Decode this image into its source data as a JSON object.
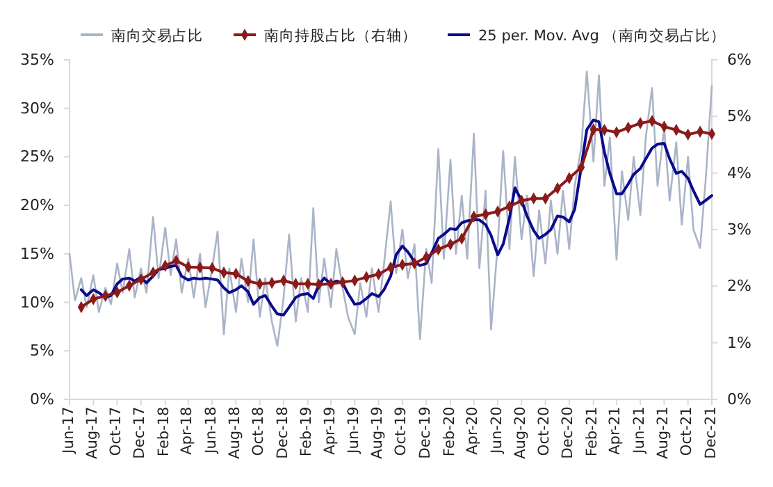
{
  "chart_data": {
    "type": "line",
    "legend": "top",
    "x": [
      "2017-06-01",
      "2017-06-15",
      "2017-07-01",
      "2017-07-15",
      "2017-08-01",
      "2017-08-15",
      "2017-09-01",
      "2017-09-15",
      "2017-10-01",
      "2017-10-15",
      "2017-11-01",
      "2017-11-15",
      "2017-12-01",
      "2017-12-15",
      "2018-01-01",
      "2018-01-15",
      "2018-02-01",
      "2018-02-15",
      "2018-03-01",
      "2018-03-15",
      "2018-04-01",
      "2018-04-15",
      "2018-05-01",
      "2018-05-15",
      "2018-06-01",
      "2018-06-15",
      "2018-07-01",
      "2018-07-15",
      "2018-08-01",
      "2018-08-15",
      "2018-09-01",
      "2018-09-15",
      "2018-10-01",
      "2018-10-15",
      "2018-11-01",
      "2018-11-15",
      "2018-12-01",
      "2018-12-15",
      "2019-01-01",
      "2019-01-15",
      "2019-02-01",
      "2019-02-15",
      "2019-03-01",
      "2019-03-15",
      "2019-04-01",
      "2019-04-15",
      "2019-05-01",
      "2019-05-15",
      "2019-06-01",
      "2019-06-15",
      "2019-07-01",
      "2019-07-15",
      "2019-08-01",
      "2019-08-15",
      "2019-09-01",
      "2019-09-15",
      "2019-10-01",
      "2019-10-15",
      "2019-11-01",
      "2019-11-15",
      "2019-12-01",
      "2019-12-15",
      "2020-01-01",
      "2020-01-15",
      "2020-02-01",
      "2020-02-15",
      "2020-03-01",
      "2020-03-15",
      "2020-04-01",
      "2020-04-15",
      "2020-05-01",
      "2020-05-15",
      "2020-06-01",
      "2020-06-15",
      "2020-07-01",
      "2020-07-15",
      "2020-08-01",
      "2020-08-15",
      "2020-09-01",
      "2020-09-15",
      "2020-10-01",
      "2020-10-15",
      "2020-11-01",
      "2020-11-15",
      "2020-12-01",
      "2020-12-15",
      "2021-01-01",
      "2021-01-15",
      "2021-02-01",
      "2021-02-15",
      "2021-03-01",
      "2021-03-15",
      "2021-04-01",
      "2021-04-15",
      "2021-05-01",
      "2021-05-15",
      "2021-06-01",
      "2021-06-15",
      "2021-07-01",
      "2021-07-15",
      "2021-08-01",
      "2021-08-15",
      "2021-09-01",
      "2021-09-15",
      "2021-10-01",
      "2021-10-15",
      "2021-11-01",
      "2021-11-15",
      "2021-12-01"
    ],
    "xlim": [
      "2017-06-01",
      "2021-12-01"
    ],
    "xticks": [
      {
        "value": "2017-06-01",
        "label": "Jun-17"
      },
      {
        "value": "2017-08-01",
        "label": "Aug-17"
      },
      {
        "value": "2017-10-01",
        "label": "Oct-17"
      },
      {
        "value": "2017-12-01",
        "label": "Dec-17"
      },
      {
        "value": "2018-02-01",
        "label": "Feb-18"
      },
      {
        "value": "2018-04-01",
        "label": "Apr-18"
      },
      {
        "value": "2018-06-01",
        "label": "Jun-18"
      },
      {
        "value": "2018-08-01",
        "label": "Aug-18"
      },
      {
        "value": "2018-10-01",
        "label": "Oct-18"
      },
      {
        "value": "2018-12-01",
        "label": "Dec-18"
      },
      {
        "value": "2019-02-01",
        "label": "Feb-19"
      },
      {
        "value": "2019-04-01",
        "label": "Apr-19"
      },
      {
        "value": "2019-06-01",
        "label": "Jun-19"
      },
      {
        "value": "2019-08-01",
        "label": "Aug-19"
      },
      {
        "value": "2019-10-01",
        "label": "Oct-19"
      },
      {
        "value": "2019-12-01",
        "label": "Dec-19"
      },
      {
        "value": "2020-02-01",
        "label": "Feb-20"
      },
      {
        "value": "2020-04-01",
        "label": "Apr-20"
      },
      {
        "value": "2020-06-01",
        "label": "Jun-20"
      },
      {
        "value": "2020-08-01",
        "label": "Aug-20"
      },
      {
        "value": "2020-10-01",
        "label": "Oct-20"
      },
      {
        "value": "2020-12-01",
        "label": "Dec-20"
      },
      {
        "value": "2021-02-01",
        "label": "Feb-21"
      },
      {
        "value": "2021-04-01",
        "label": "Apr-21"
      },
      {
        "value": "2021-06-01",
        "label": "Jun-21"
      },
      {
        "value": "2021-08-01",
        "label": "Aug-21"
      },
      {
        "value": "2021-10-01",
        "label": "Oct-21"
      },
      {
        "value": "2021-12-01",
        "label": "Dec-21"
      }
    ],
    "ylim": [
      0,
      35
    ],
    "yticks": [
      {
        "value": 0,
        "label": "0%"
      },
      {
        "value": 5,
        "label": "5%"
      },
      {
        "value": 10,
        "label": "10%"
      },
      {
        "value": 15,
        "label": "15%"
      },
      {
        "value": 20,
        "label": "20%"
      },
      {
        "value": 25,
        "label": "25%"
      },
      {
        "value": 30,
        "label": "30%"
      },
      {
        "value": 35,
        "label": "35%"
      }
    ],
    "y2lim": [
      0,
      6
    ],
    "y2ticks": [
      {
        "value": 0,
        "label": "0%"
      },
      {
        "value": 1,
        "label": "1%"
      },
      {
        "value": 2,
        "label": "2%"
      },
      {
        "value": 3,
        "label": "3%"
      },
      {
        "value": 4,
        "label": "4%"
      },
      {
        "value": 5,
        "label": "5%"
      },
      {
        "value": 6,
        "label": "6%"
      }
    ],
    "series": [
      {
        "name": "南向交易占比",
        "color": "#aab4c8",
        "marker": "none",
        "values": [
          15.0,
          10.2,
          12.5,
          9.5,
          12.8,
          9.0,
          11.5,
          9.8,
          14.0,
          11.0,
          15.5,
          10.5,
          13.5,
          11.0,
          18.8,
          12.5,
          17.7,
          12.8,
          16.5,
          11.0,
          14.5,
          10.5,
          15.0,
          9.5,
          13.5,
          17.3,
          6.7,
          13.5,
          9.0,
          14.5,
          10.0,
          16.5,
          8.5,
          12.5,
          8.0,
          5.5,
          10.5,
          17.0,
          8.0,
          12.5,
          9.0,
          19.7,
          10.0,
          14.5,
          9.5,
          15.5,
          11.5,
          8.5,
          6.7,
          12.0,
          8.5,
          13.5,
          9.0,
          14.0,
          20.4,
          13.0,
          17.5,
          12.5,
          16.0,
          6.2,
          15.5,
          12.0,
          25.8,
          14.5,
          24.7,
          15.0,
          21.0,
          14.5,
          27.4,
          13.5,
          21.5,
          7.2,
          16.0,
          25.6,
          15.5,
          25.0,
          16.5,
          21.0,
          12.7,
          19.5,
          14.0,
          20.5,
          15.0,
          21.5,
          15.5,
          22.0,
          26.0,
          33.8,
          24.5,
          33.4,
          22.0,
          27.0,
          14.4,
          23.5,
          18.5,
          25.0,
          19.0,
          27.0,
          32.1,
          22.0,
          28.0,
          20.5,
          26.5,
          18.0,
          25.0,
          17.5,
          15.6,
          22.5,
          32.3
        ]
      },
      {
        "name": "南向持股占比（右轴）",
        "axis": "y2",
        "color": "#8b1a1a",
        "marker": "diamond",
        "x": [
          "2017-07",
          "2017-08",
          "2017-09",
          "2017-10",
          "2017-11",
          "2017-12",
          "2018-01",
          "2018-02",
          "2018-03",
          "2018-04",
          "2018-05",
          "2018-06",
          "2018-07",
          "2018-08",
          "2018-09",
          "2018-10",
          "2018-11",
          "2018-12",
          "2019-01",
          "2019-02",
          "2019-03",
          "2019-04",
          "2019-05",
          "2019-06",
          "2019-07",
          "2019-08",
          "2019-09",
          "2019-10",
          "2019-11",
          "2019-12",
          "2020-01",
          "2020-02",
          "2020-03",
          "2020-04",
          "2020-05",
          "2020-06",
          "2020-07",
          "2020-08",
          "2020-09",
          "2020-10",
          "2020-11",
          "2020-12",
          "2021-01",
          "2021-02",
          "2021-03",
          "2021-04",
          "2021-05",
          "2021-06",
          "2021-07",
          "2021-08",
          "2021-09",
          "2021-10",
          "2021-11",
          "2021-12"
        ],
        "values": [
          1.63,
          1.77,
          1.83,
          1.89,
          2.01,
          2.12,
          2.24,
          2.36,
          2.45,
          2.34,
          2.33,
          2.32,
          2.24,
          2.22,
          2.09,
          2.04,
          2.06,
          2.1,
          2.04,
          2.04,
          2.03,
          2.04,
          2.07,
          2.1,
          2.16,
          2.21,
          2.33,
          2.38,
          2.4,
          2.51,
          2.65,
          2.74,
          2.84,
          3.23,
          3.27,
          3.32,
          3.41,
          3.51,
          3.55,
          3.55,
          3.73,
          3.91,
          4.1,
          4.77,
          4.76,
          4.72,
          4.8,
          4.88,
          4.92,
          4.82,
          4.76,
          4.68,
          4.73,
          4.69
        ]
      },
      {
        "name": "25 per. Mov. Avg （南向交易占比）",
        "color": "#0a0a8c",
        "marker": "none",
        "values": [
          null,
          null,
          11.3,
          10.7,
          11.3,
          11.0,
          10.5,
          10.7,
          11.9,
          12.4,
          12.5,
          12.2,
          12.6,
          12.0,
          12.7,
          13.4,
          13.5,
          13.7,
          13.8,
          12.7,
          12.3,
          12.5,
          12.4,
          12.5,
          12.4,
          12.3,
          11.5,
          11.0,
          11.3,
          11.7,
          11.1,
          9.8,
          10.5,
          10.7,
          9.6,
          8.8,
          8.7,
          9.5,
          10.5,
          10.8,
          10.9,
          10.4,
          11.8,
          12.5,
          11.9,
          12.2,
          12.0,
          10.9,
          9.8,
          9.9,
          10.4,
          10.9,
          10.6,
          11.3,
          12.7,
          14.9,
          15.8,
          15.2,
          14.2,
          13.8,
          14.0,
          15.1,
          16.6,
          17.0,
          17.6,
          17.5,
          18.2,
          18.4,
          18.5,
          18.5,
          18.0,
          16.9,
          14.9,
          16.0,
          18.7,
          21.8,
          20.5,
          18.9,
          17.4,
          16.6,
          17.0,
          17.5,
          18.9,
          18.8,
          18.3,
          19.6,
          24.0,
          27.8,
          28.8,
          28.6,
          25.5,
          23.3,
          21.2,
          21.2,
          22.2,
          23.2,
          23.8,
          24.8,
          25.9,
          26.3,
          26.4,
          24.8,
          23.3,
          23.5,
          22.8,
          21.5,
          20.1,
          20.5,
          21.0
        ]
      }
    ]
  }
}
